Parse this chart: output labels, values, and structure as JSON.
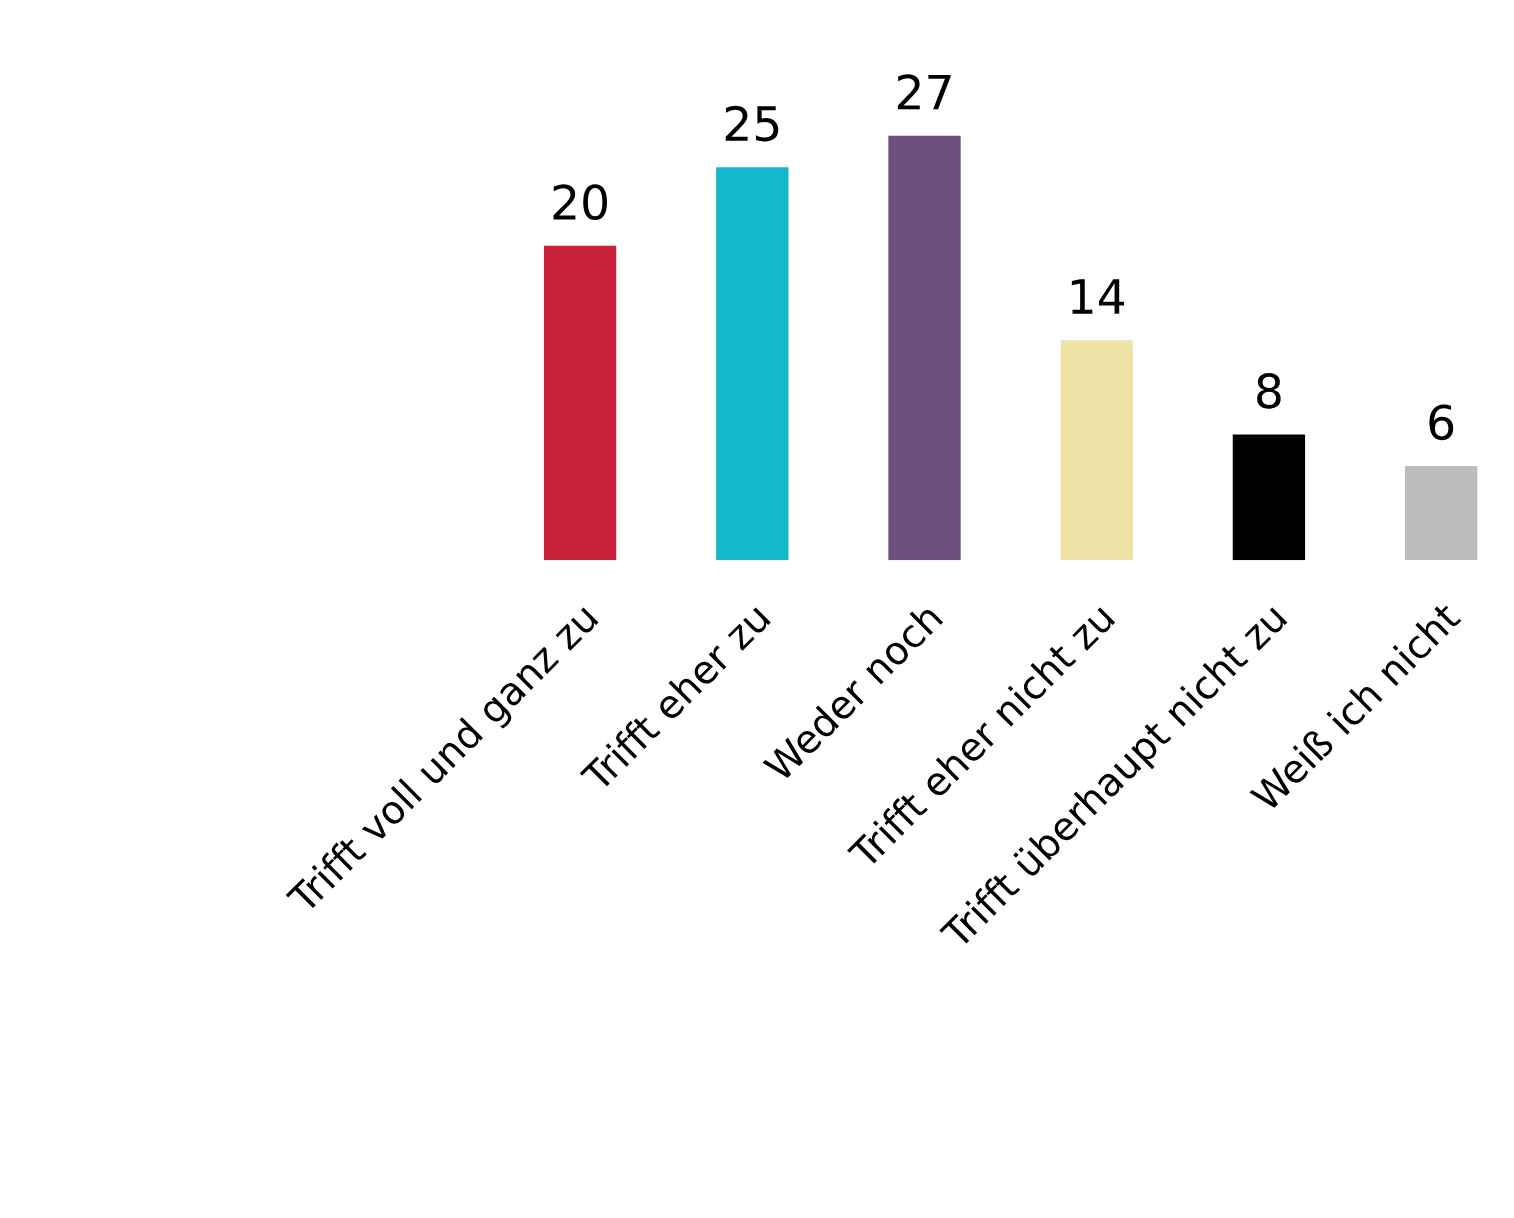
{
  "chart_data": {
    "type": "bar",
    "categories": [
      "Trifft voll und ganz zu",
      "Trifft eher zu",
      "Weder noch",
      "Trifft eher nicht zu",
      "Trifft überhaupt nicht zu",
      "Weiß ich nicht"
    ],
    "values": [
      20,
      25,
      27,
      14,
      8,
      6
    ],
    "colors": [
      "#c8203a",
      "#14b8c8",
      "#6b4f7e",
      "#efe4a8",
      "#000000",
      "#bcbcbc"
    ],
    "data_labels": true,
    "grid": false,
    "legend": false
  }
}
